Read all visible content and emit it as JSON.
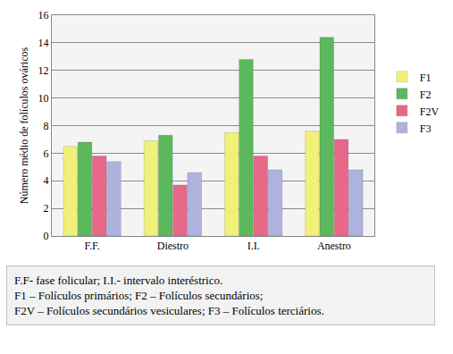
{
  "chart_data": {
    "type": "bar",
    "y_label": "Número médio de folículos ováricos",
    "categories": [
      "F.F.",
      "Diestro",
      "I.I.",
      "Anestro"
    ],
    "series": [
      {
        "name": "F1",
        "color": "#f0f07a",
        "values": [
          6.5,
          6.9,
          7.5,
          7.6
        ]
      },
      {
        "name": "F2",
        "color": "#5cb85c",
        "values": [
          6.8,
          7.3,
          12.8,
          14.4
        ]
      },
      {
        "name": "F2V",
        "color": "#e8688a",
        "values": [
          5.8,
          3.7,
          5.8,
          7.0
        ]
      },
      {
        "name": "F3",
        "color": "#aeb2de",
        "values": [
          5.4,
          4.6,
          4.8,
          4.8
        ]
      }
    ],
    "ylim": [
      0,
      16
    ],
    "yticks": [
      0,
      2,
      4,
      6,
      8,
      10,
      12,
      14,
      16
    ],
    "grid": true,
    "legend": "right",
    "annotations": [
      "F.F- fase folicular; I.I.- intervalo interéstrico.",
      "F1 – Folículos primários; F2 – Folículos secundários;",
      "F2V – Folículos secundários vesiculares; F3 – Folículos terciários."
    ]
  }
}
